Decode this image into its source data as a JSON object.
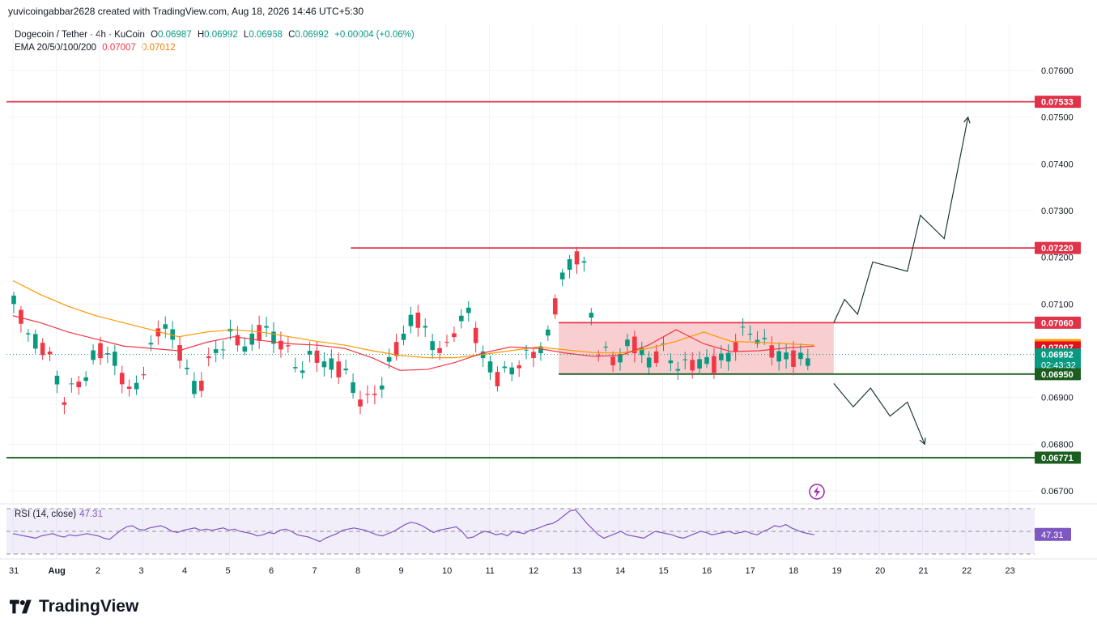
{
  "header": {
    "byline": "yuvicoingabbar2628 created with TradingView.com, Aug 18, 2026 14:46 UTC+5:30"
  },
  "legend": {
    "symbol": "Dogecoin / Tether · 4h · KuCoin",
    "o_label": "O",
    "o_value": "0.06987",
    "h_label": "H",
    "h_value": "0.06992",
    "l_label": "L",
    "l_value": "0.06968",
    "c_label": "C",
    "c_value": "0.06992",
    "change": "+0.00004 (+0.06%)",
    "ema_label": "EMA 20/50/100/200",
    "ema_value_1": "0.07007",
    "ema_value_2": "0.07012"
  },
  "rsi": {
    "label": "RSI (14, close)",
    "value": "47.31"
  },
  "brand": {
    "name": "TradingView"
  },
  "colors": {
    "up": "#089981",
    "down": "#f23645",
    "ema_fast": "#f23645",
    "ema_slow": "#ff9800",
    "rsi": "#7e57c2",
    "resistance": "#e0334a",
    "support": "#1b5e20",
    "zone": "#f7c5c8"
  },
  "chart_data": {
    "type": "candlestick",
    "ylim": [
      0.0665,
      0.0775
    ],
    "y_ticks": [
      "0.07600",
      "0.07500",
      "0.07400",
      "0.07300",
      "0.07200",
      "0.07100",
      "0.06900",
      "0.06800",
      "0.06700"
    ],
    "x_ticks": [
      "31",
      "Aug",
      "2",
      "3",
      "4",
      "5",
      "6",
      "7",
      "8",
      "9",
      "10",
      "11",
      "12",
      "13",
      "14",
      "15",
      "16",
      "17",
      "18",
      "19",
      "20",
      "21",
      "22",
      "23"
    ],
    "candles_per_day": 6,
    "price_labels": [
      {
        "value": 0.07533,
        "text": "0.07533",
        "kind": "resistance"
      },
      {
        "value": 0.0722,
        "text": "0.07220",
        "kind": "resistance"
      },
      {
        "value": 0.0706,
        "text": "0.07060",
        "kind": "resistance"
      },
      {
        "value": 0.07012,
        "text": "0.07012",
        "kind": "ema_slow"
      },
      {
        "value": 0.07007,
        "text": "0.07007",
        "kind": "ema_fast"
      },
      {
        "value": 0.06992,
        "text": "0.06992",
        "kind": "last",
        "countdown": "02:43:32"
      },
      {
        "value": 0.0695,
        "text": "0.06950",
        "kind": "support"
      },
      {
        "value": 0.06771,
        "text": "0.06771",
        "kind": "support"
      }
    ],
    "horizontal_lines": [
      {
        "value": 0.07533,
        "from_day": -1,
        "kind": "resistance"
      },
      {
        "value": 0.0722,
        "from_day": 7.8,
        "kind": "resistance"
      },
      {
        "value": 0.0706,
        "from_day": 12.6,
        "kind": "resistance"
      },
      {
        "value": 0.0695,
        "from_day": 12.6,
        "kind": "support"
      },
      {
        "value": 0.06771,
        "from_day": -1,
        "kind": "support"
      }
    ],
    "range_zone": {
      "from_day": 12.6,
      "to_day": 18.95,
      "low": 0.0695,
      "high": 0.0706
    },
    "projection_up": [
      [
        18.95,
        0.0706
      ],
      [
        19.2,
        0.0711
      ],
      [
        19.5,
        0.07078
      ],
      [
        19.85,
        0.0719
      ],
      [
        20.65,
        0.0717
      ],
      [
        20.95,
        0.0729
      ],
      [
        21.5,
        0.0724
      ],
      [
        22.05,
        0.075
      ]
    ],
    "projection_down": [
      [
        18.95,
        0.0693
      ],
      [
        19.4,
        0.0688
      ],
      [
        19.8,
        0.0692
      ],
      [
        20.25,
        0.0686
      ],
      [
        20.65,
        0.0689
      ],
      [
        21.05,
        0.068
      ]
    ],
    "rsi_ylim": [
      25,
      75
    ],
    "rsi_levels": [
      70,
      50,
      30
    ],
    "rsi_values": [
      48,
      47,
      46,
      45,
      44,
      46,
      47,
      48,
      46,
      45,
      47,
      46,
      47,
      48,
      47,
      46,
      44,
      43,
      47,
      51,
      54,
      55,
      52,
      51,
      53,
      54,
      55,
      53,
      50,
      49,
      51,
      52,
      53,
      51,
      52,
      51,
      52,
      53,
      51,
      52,
      50,
      49,
      48,
      46,
      47,
      49,
      48,
      51,
      52,
      50,
      47,
      46,
      45,
      43,
      41,
      44,
      46,
      48,
      51,
      52,
      53,
      52,
      51,
      49,
      47,
      46,
      48,
      50,
      53,
      56,
      58,
      57,
      55,
      52,
      49,
      51,
      52,
      53,
      54,
      50,
      44,
      45,
      48,
      50,
      49,
      47,
      48,
      46,
      50,
      49,
      48,
      51,
      52,
      54,
      56,
      57,
      60,
      64,
      68,
      69,
      63,
      57,
      52,
      47,
      44,
      46,
      48,
      50,
      47,
      46,
      45,
      44,
      47,
      50,
      49,
      48,
      47,
      45,
      44,
      46,
      48,
      50,
      49,
      47,
      48,
      49,
      50,
      48,
      49,
      50,
      48,
      47,
      50,
      52,
      55,
      54,
      56,
      53,
      51,
      49,
      48,
      47
    ],
    "ema_fast_values": [
      0.07075,
      0.0706,
      0.0704,
      0.07025,
      0.0701,
      0.07005,
      0.07,
      0.07018,
      0.0703,
      0.07022,
      0.07015,
      0.07012,
      0.07005,
      0.06985,
      0.06958,
      0.0696,
      0.06975,
      0.06995,
      0.07008,
      0.07005,
      0.06995,
      0.06988,
      0.0699,
      0.07012,
      0.07045,
      0.07015,
      0.06998,
      0.07,
      0.07006,
      0.0701
    ],
    "ema_slow_values": [
      0.0715,
      0.0712,
      0.07095,
      0.07075,
      0.0706,
      0.07045,
      0.0703,
      0.0704,
      0.07045,
      0.0704,
      0.0703,
      0.0702,
      0.07012,
      0.07,
      0.0699,
      0.06985,
      0.06985,
      0.06992,
      0.07,
      0.07008,
      0.07002,
      0.06996,
      0.06995,
      0.07005,
      0.0702,
      0.0704,
      0.0702,
      0.07018,
      0.07015,
      0.07012
    ]
  }
}
